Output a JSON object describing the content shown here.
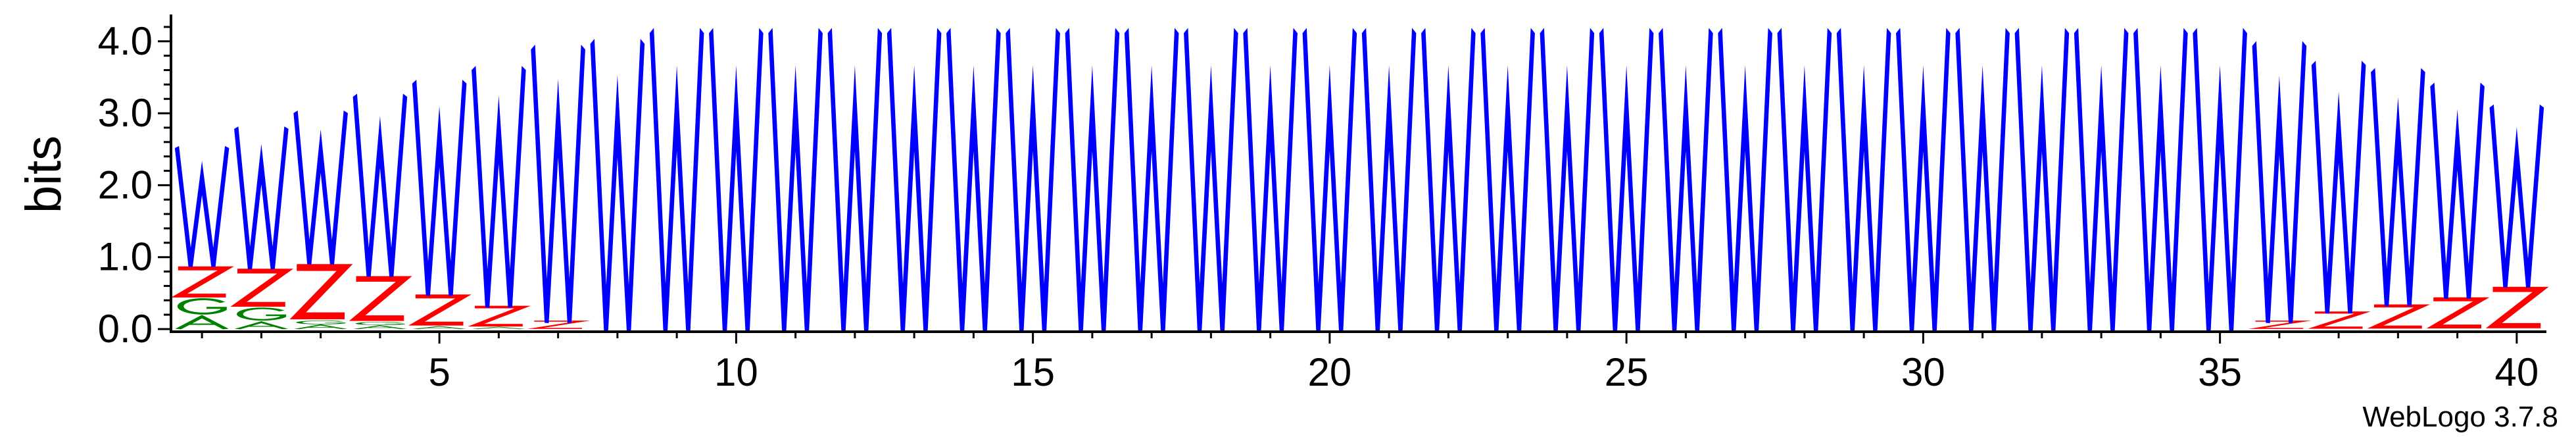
{
  "chart_data": {
    "type": "sequence-logo",
    "title": "",
    "xlabel": "",
    "ylabel": "bits",
    "ylim": [
      0,
      4.3
    ],
    "xlim": [
      0.5,
      40.5
    ],
    "x_ticks": [
      5,
      10,
      15,
      20,
      25,
      30,
      35,
      40
    ],
    "y_ticks": [
      0.0,
      1.0,
      2.0,
      3.0,
      4.0
    ],
    "y_tick_labels": [
      "0.0",
      "1.0",
      "2.0",
      "3.0",
      "4.0"
    ],
    "x_tick_labels": [
      "5",
      "10",
      "15",
      "20",
      "25",
      "30",
      "35",
      "40"
    ],
    "colors": {
      "W": "#0000ff",
      "Z": "#ff0000",
      "G": "#008000",
      "A": "#008000",
      "axis": "#000000"
    },
    "positions": [
      {
        "x": 1,
        "stack": [
          {
            "letter": "A",
            "bits": 0.18
          },
          {
            "letter": "G",
            "bits": 0.25
          },
          {
            "letter": "Z",
            "bits": 0.45
          },
          {
            "letter": "W",
            "bits": 1.65
          }
        ]
      },
      {
        "x": 2,
        "stack": [
          {
            "letter": "A",
            "bits": 0.1
          },
          {
            "letter": "G",
            "bits": 0.2
          },
          {
            "letter": "Z",
            "bits": 0.55
          },
          {
            "letter": "W",
            "bits": 1.95
          }
        ]
      },
      {
        "x": 3,
        "stack": [
          {
            "letter": "A",
            "bits": 0.06
          },
          {
            "letter": "G",
            "bits": 0.06
          },
          {
            "letter": "Z",
            "bits": 0.8
          },
          {
            "letter": "W",
            "bits": 2.1
          }
        ]
      },
      {
        "x": 4,
        "stack": [
          {
            "letter": "A",
            "bits": 0.05
          },
          {
            "letter": "G",
            "bits": 0.05
          },
          {
            "letter": "Z",
            "bits": 0.65
          },
          {
            "letter": "W",
            "bits": 2.5
          }
        ]
      },
      {
        "x": 5,
        "stack": [
          {
            "letter": "A",
            "bits": 0.04
          },
          {
            "letter": "Z",
            "bits": 0.45
          },
          {
            "letter": "W",
            "bits": 2.95
          }
        ]
      },
      {
        "x": 6,
        "stack": [
          {
            "letter": "A",
            "bits": 0.03
          },
          {
            "letter": "Z",
            "bits": 0.3
          },
          {
            "letter": "W",
            "bits": 3.3
          }
        ]
      },
      {
        "x": 7,
        "stack": [
          {
            "letter": "Z",
            "bits": 0.12
          },
          {
            "letter": "W",
            "bits": 3.8
          }
        ]
      },
      {
        "x": 8,
        "stack": [
          {
            "letter": "W",
            "bits": 4.0
          }
        ]
      },
      {
        "x": 9,
        "stack": [
          {
            "letter": "W",
            "bits": 4.15
          }
        ]
      },
      {
        "x": 10,
        "stack": [
          {
            "letter": "W",
            "bits": 4.15
          }
        ]
      },
      {
        "x": 11,
        "stack": [
          {
            "letter": "W",
            "bits": 4.15
          }
        ]
      },
      {
        "x": 12,
        "stack": [
          {
            "letter": "W",
            "bits": 4.15
          }
        ]
      },
      {
        "x": 13,
        "stack": [
          {
            "letter": "W",
            "bits": 4.15
          }
        ]
      },
      {
        "x": 14,
        "stack": [
          {
            "letter": "W",
            "bits": 4.15
          }
        ]
      },
      {
        "x": 15,
        "stack": [
          {
            "letter": "W",
            "bits": 4.15
          }
        ]
      },
      {
        "x": 16,
        "stack": [
          {
            "letter": "W",
            "bits": 4.15
          }
        ]
      },
      {
        "x": 17,
        "stack": [
          {
            "letter": "W",
            "bits": 4.15
          }
        ]
      },
      {
        "x": 18,
        "stack": [
          {
            "letter": "W",
            "bits": 4.15
          }
        ]
      },
      {
        "x": 19,
        "stack": [
          {
            "letter": "W",
            "bits": 4.15
          }
        ]
      },
      {
        "x": 20,
        "stack": [
          {
            "letter": "W",
            "bits": 4.15
          }
        ]
      },
      {
        "x": 21,
        "stack": [
          {
            "letter": "W",
            "bits": 4.15
          }
        ]
      },
      {
        "x": 22,
        "stack": [
          {
            "letter": "W",
            "bits": 4.15
          }
        ]
      },
      {
        "x": 23,
        "stack": [
          {
            "letter": "W",
            "bits": 4.15
          }
        ]
      },
      {
        "x": 24,
        "stack": [
          {
            "letter": "W",
            "bits": 4.15
          }
        ]
      },
      {
        "x": 25,
        "stack": [
          {
            "letter": "W",
            "bits": 4.15
          }
        ]
      },
      {
        "x": 26,
        "stack": [
          {
            "letter": "W",
            "bits": 4.15
          }
        ]
      },
      {
        "x": 27,
        "stack": [
          {
            "letter": "W",
            "bits": 4.15
          }
        ]
      },
      {
        "x": 28,
        "stack": [
          {
            "letter": "W",
            "bits": 4.15
          }
        ]
      },
      {
        "x": 29,
        "stack": [
          {
            "letter": "W",
            "bits": 4.15
          }
        ]
      },
      {
        "x": 30,
        "stack": [
          {
            "letter": "W",
            "bits": 4.15
          }
        ]
      },
      {
        "x": 31,
        "stack": [
          {
            "letter": "W",
            "bits": 4.15
          }
        ]
      },
      {
        "x": 32,
        "stack": [
          {
            "letter": "W",
            "bits": 4.15
          }
        ]
      },
      {
        "x": 33,
        "stack": [
          {
            "letter": "W",
            "bits": 4.15
          }
        ]
      },
      {
        "x": 34,
        "stack": [
          {
            "letter": "W",
            "bits": 4.15
          }
        ]
      },
      {
        "x": 35,
        "stack": [
          {
            "letter": "W",
            "bits": 4.15
          }
        ]
      },
      {
        "x": 36,
        "stack": [
          {
            "letter": "Z",
            "bits": 0.12
          },
          {
            "letter": "W",
            "bits": 3.85
          }
        ]
      },
      {
        "x": 37,
        "stack": [
          {
            "letter": "Z",
            "bits": 0.25
          },
          {
            "letter": "W",
            "bits": 3.45
          }
        ]
      },
      {
        "x": 38,
        "stack": [
          {
            "letter": "Z",
            "bits": 0.35
          },
          {
            "letter": "W",
            "bits": 3.25
          }
        ]
      },
      {
        "x": 39,
        "stack": [
          {
            "letter": "Z",
            "bits": 0.45
          },
          {
            "letter": "W",
            "bits": 2.95
          }
        ]
      },
      {
        "x": 40,
        "stack": [
          {
            "letter": "Z",
            "bits": 0.6
          },
          {
            "letter": "W",
            "bits": 2.5
          }
        ]
      }
    ]
  },
  "footer": {
    "credit": "WebLogo 3.7.8"
  }
}
